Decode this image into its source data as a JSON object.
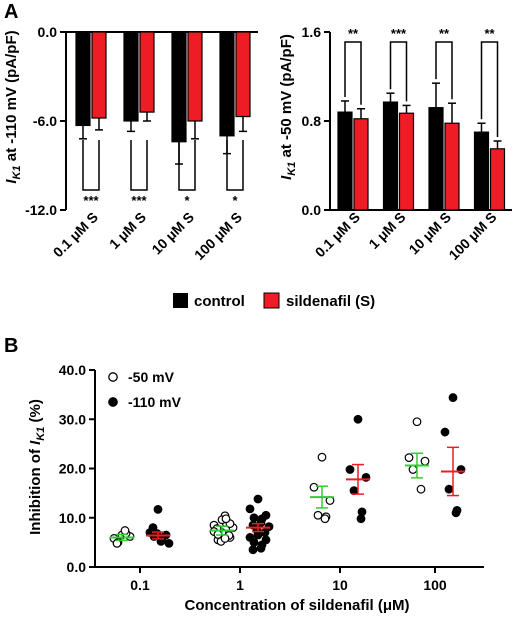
{
  "panels": {
    "a_label": "A",
    "b_label": "B"
  },
  "legend": {
    "control": "control",
    "sildenafil": "sildenafil (S)"
  },
  "colors": {
    "control": "#000000",
    "sildenafil": "#ee1c24",
    "scatter_mean_50": "#33cc33",
    "scatter_mean_110": "#ee1c24"
  },
  "chart_data": [
    {
      "panel": "A-left",
      "type": "bar",
      "ylabel_main": "I",
      "ylabel_sub": "K1",
      "ylabel_rest": " at -110 mV (pA/pF)",
      "ylim": [
        -12.0,
        0.0
      ],
      "yticks": [
        "0.0",
        "-6.0",
        "-12.0"
      ],
      "ytick_values": [
        0,
        -6,
        -12
      ],
      "categories": [
        "0.1 μM S",
        "1 μM S",
        "10 μM S",
        "100 μM S"
      ],
      "series": [
        {
          "name": "control",
          "values": [
            -6.3,
            -6.0,
            -7.4,
            -7.0
          ],
          "errors": [
            0.9,
            0.7,
            1.5,
            1.2
          ]
        },
        {
          "name": "sildenafil (S)",
          "values": [
            -5.8,
            -5.4,
            -6.0,
            -5.7
          ],
          "errors": [
            0.8,
            0.6,
            1.2,
            1.0
          ]
        }
      ],
      "significance": [
        "***",
        "***",
        "*",
        "*"
      ]
    },
    {
      "panel": "A-right",
      "type": "bar",
      "ylabel_main": "I",
      "ylabel_sub": "K1",
      "ylabel_rest": " at -50 mV (pA/pF)",
      "ylim": [
        0.0,
        1.6
      ],
      "yticks": [
        "1.6",
        "0.8",
        "0.0"
      ],
      "ytick_values": [
        1.6,
        0.8,
        0.0
      ],
      "categories": [
        "0.1 μM S",
        "1 μM S",
        "10 μM S",
        "100 μM S"
      ],
      "series": [
        {
          "name": "control",
          "values": [
            0.88,
            0.97,
            0.92,
            0.7
          ],
          "errors": [
            0.1,
            0.08,
            0.22,
            0.08
          ]
        },
        {
          "name": "sildenafil (S)",
          "values": [
            0.82,
            0.87,
            0.78,
            0.55
          ],
          "errors": [
            0.09,
            0.07,
            0.18,
            0.07
          ]
        }
      ],
      "significance": [
        "**",
        "***",
        "**",
        "**"
      ]
    },
    {
      "panel": "B",
      "type": "scatter",
      "xlabel": "Concentration of sildenafil (μM)",
      "ylabel_main": "Inhibition of ",
      "ylabel_italic": "I",
      "ylabel_sub": "K1",
      "ylabel_rest": " (%)",
      "ylim": [
        0.0,
        40.0
      ],
      "yticks": [
        "0.0",
        "10.0",
        "20.0",
        "30.0",
        "40.0"
      ],
      "ytick_values": [
        0,
        10,
        20,
        30,
        40
      ],
      "categories": [
        "0.1",
        "1",
        "10",
        "100"
      ],
      "series": [
        {
          "name": "-50 mV",
          "marker": "open-circle",
          "points": [
            [
              6.5,
              5.8,
              6.2,
              5.0,
              6.8,
              7.4,
              4.8
            ],
            [
              7.0,
              8.5,
              6.0,
              5.5,
              9.0,
              10.4,
              7.8,
              8.0,
              5.2,
              6.4,
              9.6,
              7.2,
              8.8,
              6.6,
              9.8,
              5.8
            ],
            [
              22.3,
              16.2,
              13.5,
              10.5,
              10.2,
              9.8
            ],
            [
              29.5,
              22.2,
              21.5,
              19.8,
              15.8
            ]
          ],
          "mean": [
            6.0,
            7.4,
            14.2,
            20.6
          ],
          "sem": [
            0.6,
            0.9,
            2.2,
            2.5
          ]
        },
        {
          "name": "-110 mV",
          "marker": "filled-circle",
          "points": [
            [
              11.7,
              7.0,
              6.5,
              6.2,
              5.8,
              5.2,
              8.0,
              4.8,
              6.8
            ],
            [
              13.8,
              11.8,
              10.5,
              10.0,
              9.8,
              9.0,
              8.5,
              8.2,
              7.5,
              7.0,
              6.5,
              6.0,
              5.5,
              5.0,
              4.5,
              3.8,
              3.5
            ],
            [
              30.0,
              19.8,
              18.2,
              15.5,
              11.2,
              9.8
            ],
            [
              34.4,
              27.4,
              19.8,
              15.8,
              11.5,
              11.0
            ]
          ],
          "mean": [
            6.4,
            8.0,
            17.8,
            19.4
          ],
          "sem": [
            0.7,
            0.8,
            3.0,
            4.9
          ]
        }
      ]
    }
  ]
}
